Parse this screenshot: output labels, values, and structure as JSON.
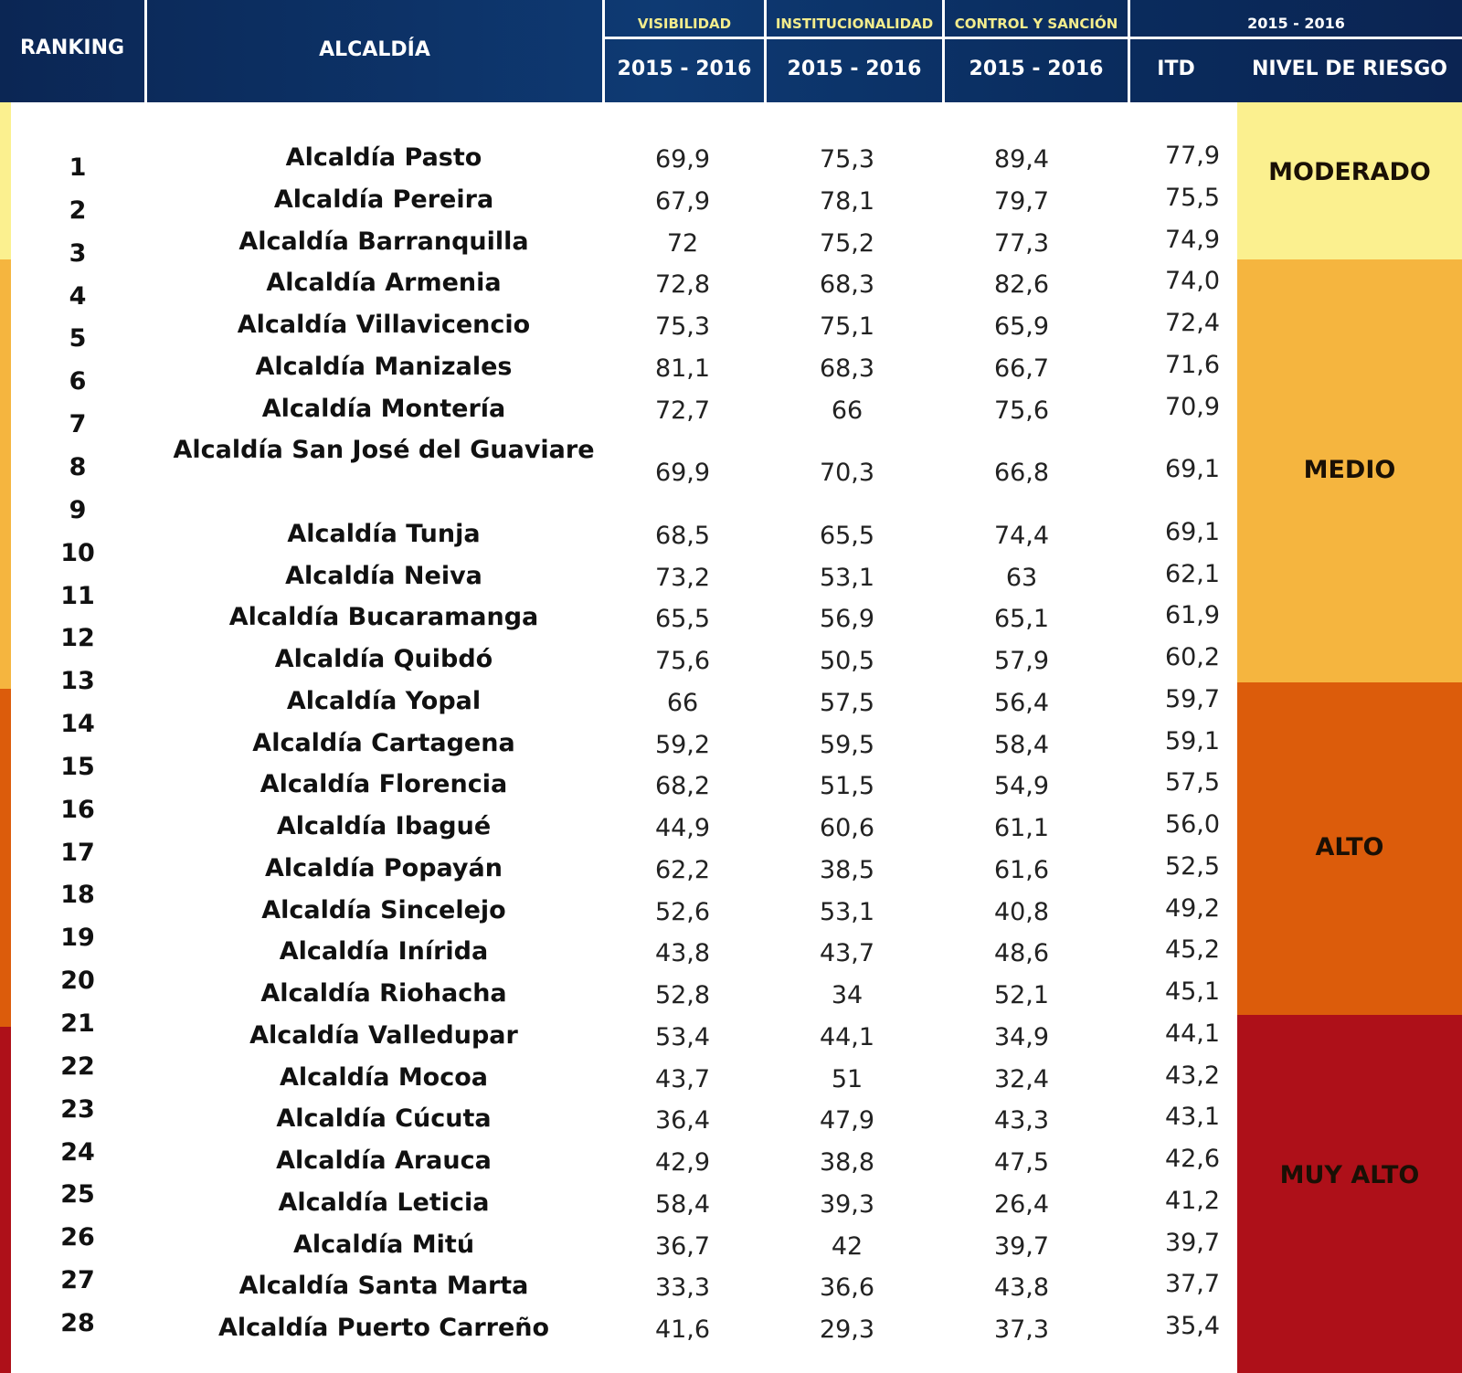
{
  "header": {
    "ranking": "RANKING",
    "alcaldia": "ALCALDÍA",
    "visibilidad": "VISIBILIDAD",
    "institucionalidad": "INSTITUCIONALIDAD",
    "control": "CONTROL Y SANCIÓN",
    "period_top": "2015 - 2016",
    "period_vis": "2015 - 2016",
    "period_inst": "2015 - 2016",
    "period_ctrl": "2015 - 2016",
    "itd": "ITD",
    "nivel": "NIVEL DE  RIESGO"
  },
  "chart_data": {
    "type": "table",
    "columns": [
      "RANKING",
      "ALCALDÍA",
      "VISIBILIDAD 2015 - 2016",
      "INSTITUCIONALIDAD 2015 - 2016",
      "CONTROL Y SANCIÓN 2015 - 2016",
      "ITD",
      "NIVEL DE RIESGO"
    ],
    "ranks": [
      "1",
      "2",
      "3",
      "4",
      "5",
      "6",
      "7",
      "8",
      "9",
      "10",
      "11",
      "12",
      "13",
      "14",
      "15",
      "16",
      "17",
      "18",
      "19",
      "20",
      "21",
      "22",
      "23",
      "24",
      "25",
      "26",
      "27",
      "28"
    ],
    "rows": [
      {
        "name": "Alcaldía Pasto",
        "vis": "69,9",
        "inst": "75,3",
        "ctrl": "89,4",
        "itd": "77,9"
      },
      {
        "name": "Alcaldía Pereira",
        "vis": "67,9",
        "inst": "78,1",
        "ctrl": "79,7",
        "itd": "75,5"
      },
      {
        "name": "Alcaldía Barranquilla",
        "vis": "72",
        "inst": "75,2",
        "ctrl": "77,3",
        "itd": "74,9"
      },
      {
        "name": "Alcaldía Armenia",
        "vis": "72,8",
        "inst": "68,3",
        "ctrl": "82,6",
        "itd": "74,0"
      },
      {
        "name": "Alcaldía Villavicencio",
        "vis": "75,3",
        "inst": "75,1",
        "ctrl": "65,9",
        "itd": "72,4"
      },
      {
        "name": "Alcaldía Manizales",
        "vis": "81,1",
        "inst": "68,3",
        "ctrl": "66,7",
        "itd": "71,6"
      },
      {
        "name": "Alcaldía Montería",
        "vis": "72,7",
        "inst": "66",
        "ctrl": "75,6",
        "itd": "70,9"
      },
      {
        "name": "Alcaldía San José del Guaviare",
        "vis": "69,9",
        "inst": "70,3",
        "ctrl": "66,8",
        "itd": "69,1"
      },
      {
        "name": "Alcaldía Tunja",
        "vis": "68,5",
        "inst": "65,5",
        "ctrl": "74,4",
        "itd": "69,1"
      },
      {
        "name": "Alcaldía Neiva",
        "vis": "73,2",
        "inst": "53,1",
        "ctrl": "63",
        "itd": "62,1"
      },
      {
        "name": "Alcaldía Bucaramanga",
        "vis": "65,5",
        "inst": "56,9",
        "ctrl": "65,1",
        "itd": "61,9"
      },
      {
        "name": "Alcaldía Quibdó",
        "vis": "75,6",
        "inst": "50,5",
        "ctrl": "57,9",
        "itd": "60,2"
      },
      {
        "name": "Alcaldía Yopal",
        "vis": "66",
        "inst": "57,5",
        "ctrl": "56,4",
        "itd": "59,7"
      },
      {
        "name": "Alcaldía Cartagena",
        "vis": "59,2",
        "inst": "59,5",
        "ctrl": "58,4",
        "itd": "59,1"
      },
      {
        "name": "Alcaldía Florencia",
        "vis": "68,2",
        "inst": "51,5",
        "ctrl": "54,9",
        "itd": "57,5"
      },
      {
        "name": "Alcaldía Ibagué",
        "vis": "44,9",
        "inst": "60,6",
        "ctrl": "61,1",
        "itd": "56,0"
      },
      {
        "name": "Alcaldía Popayán",
        "vis": "62,2",
        "inst": "38,5",
        "ctrl": "61,6",
        "itd": "52,5"
      },
      {
        "name": "Alcaldía Sincelejo",
        "vis": "52,6",
        "inst": "53,1",
        "ctrl": "40,8",
        "itd": "49,2"
      },
      {
        "name": "Alcaldía Inírida",
        "vis": "43,8",
        "inst": "43,7",
        "ctrl": "48,6",
        "itd": "45,2"
      },
      {
        "name": "Alcaldía Riohacha",
        "vis": "52,8",
        "inst": "34",
        "ctrl": "52,1",
        "itd": "45,1"
      },
      {
        "name": "Alcaldía Valledupar",
        "vis": "53,4",
        "inst": "44,1",
        "ctrl": "34,9",
        "itd": "44,1"
      },
      {
        "name": "Alcaldía Mocoa",
        "vis": "43,7",
        "inst": "51",
        "ctrl": "32,4",
        "itd": "43,2"
      },
      {
        "name": "Alcaldía Cúcuta",
        "vis": "36,4",
        "inst": "47,9",
        "ctrl": "43,3",
        "itd": "43,1"
      },
      {
        "name": "Alcaldía Arauca",
        "vis": "42,9",
        "inst": "38,8",
        "ctrl": "47,5",
        "itd": "42,6"
      },
      {
        "name": "Alcaldía Leticia",
        "vis": "58,4",
        "inst": "39,3",
        "ctrl": "26,4",
        "itd": "41,2"
      },
      {
        "name": "Alcaldía Mitú",
        "vis": "36,7",
        "inst": "42",
        "ctrl": "39,7",
        "itd": "39,7"
      },
      {
        "name": "Alcaldía Santa Marta",
        "vis": "33,3",
        "inst": "36,6",
        "ctrl": "43,8",
        "itd": "37,7"
      },
      {
        "name": "Alcaldía Puerto Carreño",
        "vis": "41,6",
        "inst": "29,3",
        "ctrl": "37,3",
        "itd": "35,4"
      }
    ],
    "risk_levels": [
      {
        "label": "MODERADO",
        "first": 1,
        "last": 3,
        "color": "#fbf08f"
      },
      {
        "label": "MEDIO",
        "first": 4,
        "last": 13,
        "color": "#f5b53f"
      },
      {
        "label": "ALTO",
        "first": 14,
        "last": 21,
        "color": "#dc5c0b"
      },
      {
        "label": "MUY ALTO",
        "first": 22,
        "last": 28,
        "color": "#ae1019"
      }
    ],
    "colors": {
      "header": "#0e3a73",
      "header_top_text": "#f3ec8c",
      "header_text": "#ffffff"
    }
  }
}
